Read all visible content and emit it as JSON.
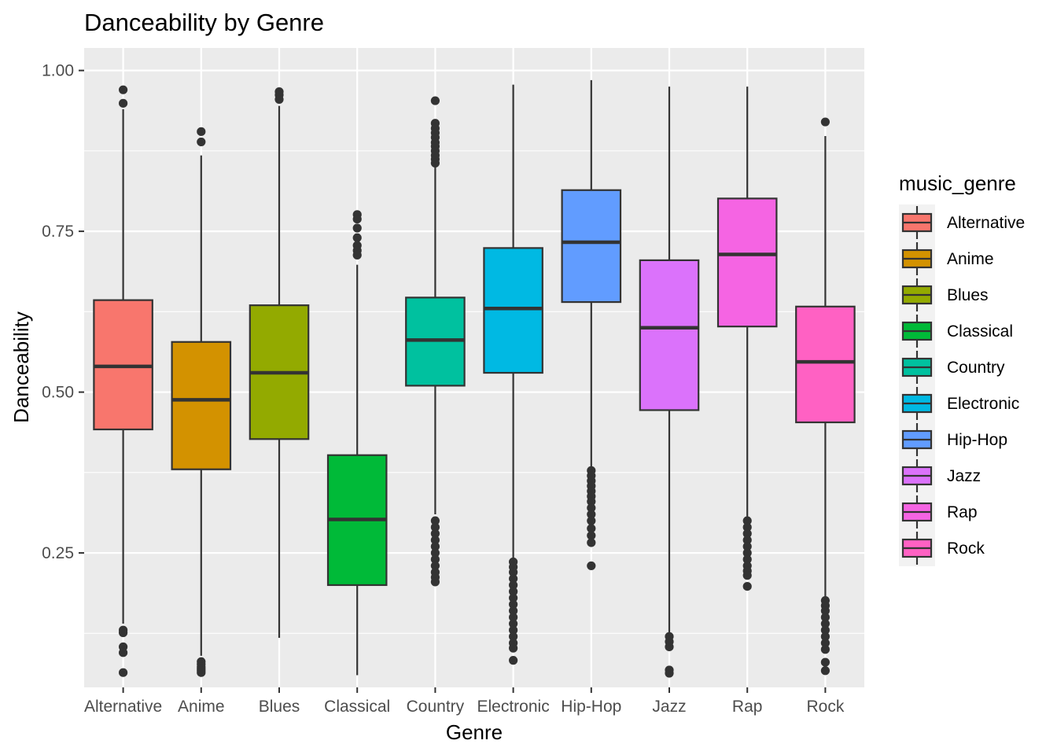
{
  "chart_data": {
    "type": "boxplot",
    "title": "Danceability by Genre",
    "xlabel": "Genre",
    "ylabel": "Danceability",
    "ylim": [
      0.041,
      1.035
    ],
    "y_ticks": [
      0.25,
      0.5,
      0.75,
      1.0
    ],
    "y_tick_labels": [
      "0.25",
      "0.50",
      "0.75",
      "1.00"
    ],
    "grid": true,
    "legend": {
      "title": "music_genre",
      "position": "right"
    },
    "categories": [
      "Alternative",
      "Anime",
      "Blues",
      "Classical",
      "Country",
      "Electronic",
      "Hip-Hop",
      "Jazz",
      "Rap",
      "Rock"
    ],
    "series": [
      {
        "name": "Alternative",
        "color": "#F8766D",
        "whisker_low": 0.14,
        "q1": 0.442,
        "median": 0.54,
        "q3": 0.643,
        "whisker_high": 0.94,
        "outliers": [
          0.97,
          0.949,
          0.13,
          0.126,
          0.104,
          0.095,
          0.064
        ]
      },
      {
        "name": "Anime",
        "color": "#D39200",
        "whisker_low": 0.09,
        "q1": 0.38,
        "median": 0.488,
        "q3": 0.578,
        "whisker_high": 0.868,
        "outliers": [
          0.905,
          0.889,
          0.081,
          0.077,
          0.073,
          0.07,
          0.067,
          0.064
        ]
      },
      {
        "name": "Blues",
        "color": "#93AA00",
        "whisker_low": 0.118,
        "q1": 0.427,
        "median": 0.53,
        "q3": 0.635,
        "whisker_high": 0.945,
        "outliers": [
          0.967,
          0.962,
          0.955
        ]
      },
      {
        "name": "Classical",
        "color": "#00BA38",
        "whisker_low": 0.06,
        "q1": 0.2,
        "median": 0.302,
        "q3": 0.402,
        "whisker_high": 0.698,
        "outliers": [
          0.776,
          0.769,
          0.755,
          0.74,
          0.728,
          0.72,
          0.713
        ]
      },
      {
        "name": "Country",
        "color": "#00C19F",
        "whisker_low": 0.31,
        "q1": 0.51,
        "median": 0.581,
        "q3": 0.647,
        "whisker_high": 0.85,
        "outliers": [
          0.953,
          0.918,
          0.91,
          0.903,
          0.896,
          0.888,
          0.882,
          0.875,
          0.868,
          0.862,
          0.856,
          0.3,
          0.29,
          0.28,
          0.27,
          0.26,
          0.25,
          0.24,
          0.23,
          0.22,
          0.212,
          0.205
        ]
      },
      {
        "name": "Electronic",
        "color": "#00B9E3",
        "whisker_low": 0.24,
        "q1": 0.53,
        "median": 0.63,
        "q3": 0.724,
        "whisker_high": 0.978,
        "outliers": [
          0.236,
          0.228,
          0.22,
          0.21,
          0.2,
          0.19,
          0.18,
          0.17,
          0.16,
          0.15,
          0.14,
          0.13,
          0.12,
          0.11,
          0.102,
          0.083
        ]
      },
      {
        "name": "Hip-Hop",
        "color": "#619CFF",
        "whisker_low": 0.38,
        "q1": 0.64,
        "median": 0.733,
        "q3": 0.814,
        "whisker_high": 0.985,
        "outliers": [
          0.378,
          0.37,
          0.362,
          0.354,
          0.346,
          0.338,
          0.33,
          0.32,
          0.31,
          0.3,
          0.288,
          0.277,
          0.266,
          0.23
        ]
      },
      {
        "name": "Jazz",
        "color": "#DB72FB",
        "whisker_low": 0.125,
        "q1": 0.472,
        "median": 0.6,
        "q3": 0.705,
        "whisker_high": 0.975,
        "outliers": [
          0.12,
          0.112,
          0.104,
          0.068,
          0.063
        ]
      },
      {
        "name": "Rap",
        "color": "#F564E3",
        "whisker_low": 0.305,
        "q1": 0.602,
        "median": 0.714,
        "q3": 0.801,
        "whisker_high": 0.975,
        "outliers": [
          0.3,
          0.29,
          0.28,
          0.27,
          0.26,
          0.25,
          0.24,
          0.23,
          0.222,
          0.215,
          0.198
        ]
      },
      {
        "name": "Rock",
        "color": "#FF61C3",
        "whisker_low": 0.18,
        "q1": 0.453,
        "median": 0.547,
        "q3": 0.633,
        "whisker_high": 0.898,
        "outliers": [
          0.92,
          0.176,
          0.168,
          0.16,
          0.15,
          0.14,
          0.13,
          0.12,
          0.11,
          0.1,
          0.08,
          0.067
        ]
      }
    ]
  }
}
